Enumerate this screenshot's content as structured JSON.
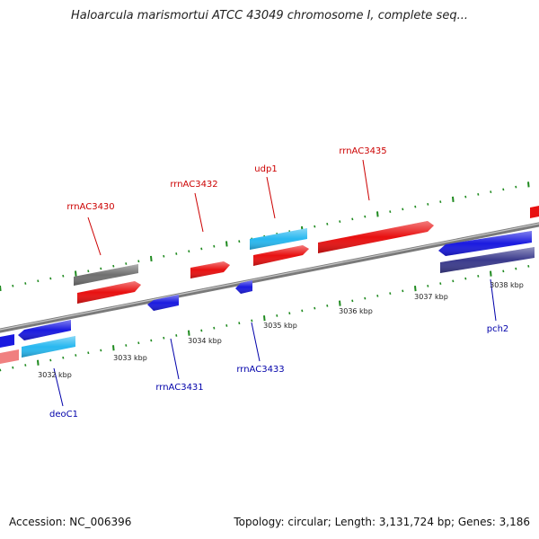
{
  "title": "Haloarcula marismortui ATCC 43049 chromosome I, complete seq...",
  "footer": {
    "accession": "Accession: NC_006396",
    "summary": "Topology: circular; Length: 3,131,724 bp; Genes: 3,186"
  },
  "colors": {
    "red": "#e81010",
    "blue": "#1a1ae0",
    "cyan": "#28b8f0",
    "gray": "#707070",
    "pink": "#f08080",
    "navy": "#3a3a8c",
    "tick": "#1f8a1f",
    "label_red": "#cc0000",
    "label_blue": "#0000aa"
  },
  "chart_data": {
    "type": "genome-map",
    "bp_labels": [
      "3032 kbp",
      "3033 kbp",
      "3034 kbp",
      "3035 kbp",
      "3036 kbp",
      "3037 kbp",
      "3038 kbp"
    ],
    "gene_labels_top": [
      "rrnAC3430",
      "rrnAC3432",
      "udp1",
      "rrnAC3435"
    ],
    "gene_labels_bottom": [
      "deoC1",
      "rrnAC3431",
      "rrnAC3433",
      "pch2"
    ]
  }
}
